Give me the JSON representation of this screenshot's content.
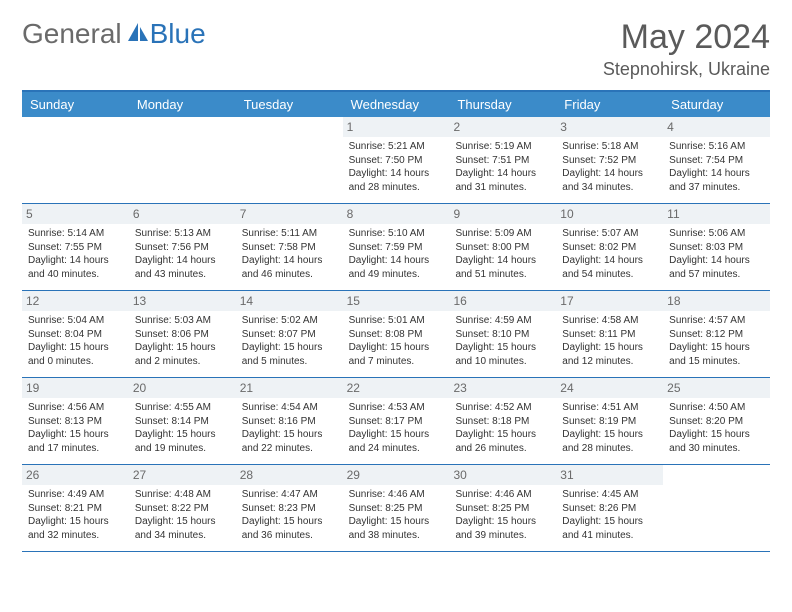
{
  "logo": {
    "part1": "General",
    "part2": "Blue"
  },
  "title": "May 2024",
  "location": "Stepnohirsk, Ukraine",
  "colors": {
    "header_bg": "#3b8bc9",
    "border": "#2a73b8",
    "daynum_bg": "#eef2f5",
    "text": "#333333",
    "logo_gray": "#6a6a6a",
    "logo_blue": "#2a73b8"
  },
  "day_headers": [
    "Sunday",
    "Monday",
    "Tuesday",
    "Wednesday",
    "Thursday",
    "Friday",
    "Saturday"
  ],
  "weeks": [
    [
      null,
      null,
      null,
      {
        "n": "1",
        "sr": "5:21 AM",
        "ss": "7:50 PM",
        "dh": "14",
        "dm": "28"
      },
      {
        "n": "2",
        "sr": "5:19 AM",
        "ss": "7:51 PM",
        "dh": "14",
        "dm": "31"
      },
      {
        "n": "3",
        "sr": "5:18 AM",
        "ss": "7:52 PM",
        "dh": "14",
        "dm": "34"
      },
      {
        "n": "4",
        "sr": "5:16 AM",
        "ss": "7:54 PM",
        "dh": "14",
        "dm": "37"
      }
    ],
    [
      {
        "n": "5",
        "sr": "5:14 AM",
        "ss": "7:55 PM",
        "dh": "14",
        "dm": "40"
      },
      {
        "n": "6",
        "sr": "5:13 AM",
        "ss": "7:56 PM",
        "dh": "14",
        "dm": "43"
      },
      {
        "n": "7",
        "sr": "5:11 AM",
        "ss": "7:58 PM",
        "dh": "14",
        "dm": "46"
      },
      {
        "n": "8",
        "sr": "5:10 AM",
        "ss": "7:59 PM",
        "dh": "14",
        "dm": "49"
      },
      {
        "n": "9",
        "sr": "5:09 AM",
        "ss": "8:00 PM",
        "dh": "14",
        "dm": "51"
      },
      {
        "n": "10",
        "sr": "5:07 AM",
        "ss": "8:02 PM",
        "dh": "14",
        "dm": "54"
      },
      {
        "n": "11",
        "sr": "5:06 AM",
        "ss": "8:03 PM",
        "dh": "14",
        "dm": "57"
      }
    ],
    [
      {
        "n": "12",
        "sr": "5:04 AM",
        "ss": "8:04 PM",
        "dh": "15",
        "dm": "0"
      },
      {
        "n": "13",
        "sr": "5:03 AM",
        "ss": "8:06 PM",
        "dh": "15",
        "dm": "2"
      },
      {
        "n": "14",
        "sr": "5:02 AM",
        "ss": "8:07 PM",
        "dh": "15",
        "dm": "5"
      },
      {
        "n": "15",
        "sr": "5:01 AM",
        "ss": "8:08 PM",
        "dh": "15",
        "dm": "7"
      },
      {
        "n": "16",
        "sr": "4:59 AM",
        "ss": "8:10 PM",
        "dh": "15",
        "dm": "10"
      },
      {
        "n": "17",
        "sr": "4:58 AM",
        "ss": "8:11 PM",
        "dh": "15",
        "dm": "12"
      },
      {
        "n": "18",
        "sr": "4:57 AM",
        "ss": "8:12 PM",
        "dh": "15",
        "dm": "15"
      }
    ],
    [
      {
        "n": "19",
        "sr": "4:56 AM",
        "ss": "8:13 PM",
        "dh": "15",
        "dm": "17"
      },
      {
        "n": "20",
        "sr": "4:55 AM",
        "ss": "8:14 PM",
        "dh": "15",
        "dm": "19"
      },
      {
        "n": "21",
        "sr": "4:54 AM",
        "ss": "8:16 PM",
        "dh": "15",
        "dm": "22"
      },
      {
        "n": "22",
        "sr": "4:53 AM",
        "ss": "8:17 PM",
        "dh": "15",
        "dm": "24"
      },
      {
        "n": "23",
        "sr": "4:52 AM",
        "ss": "8:18 PM",
        "dh": "15",
        "dm": "26"
      },
      {
        "n": "24",
        "sr": "4:51 AM",
        "ss": "8:19 PM",
        "dh": "15",
        "dm": "28"
      },
      {
        "n": "25",
        "sr": "4:50 AM",
        "ss": "8:20 PM",
        "dh": "15",
        "dm": "30"
      }
    ],
    [
      {
        "n": "26",
        "sr": "4:49 AM",
        "ss": "8:21 PM",
        "dh": "15",
        "dm": "32"
      },
      {
        "n": "27",
        "sr": "4:48 AM",
        "ss": "8:22 PM",
        "dh": "15",
        "dm": "34"
      },
      {
        "n": "28",
        "sr": "4:47 AM",
        "ss": "8:23 PM",
        "dh": "15",
        "dm": "36"
      },
      {
        "n": "29",
        "sr": "4:46 AM",
        "ss": "8:25 PM",
        "dh": "15",
        "dm": "38"
      },
      {
        "n": "30",
        "sr": "4:46 AM",
        "ss": "8:25 PM",
        "dh": "15",
        "dm": "39"
      },
      {
        "n": "31",
        "sr": "4:45 AM",
        "ss": "8:26 PM",
        "dh": "15",
        "dm": "41"
      },
      null
    ]
  ],
  "labels": {
    "sunrise": "Sunrise:",
    "sunset": "Sunset:",
    "daylight": "Daylight:",
    "hours": "hours",
    "and": "and",
    "minutes": "minutes."
  }
}
